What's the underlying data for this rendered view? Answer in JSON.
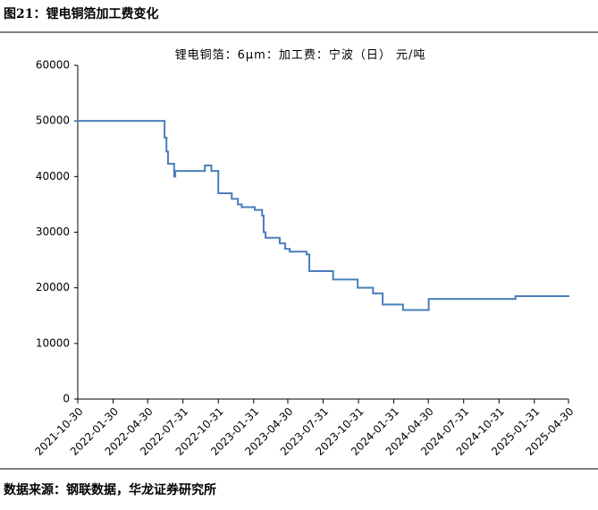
{
  "figure_title": "图21：锂电铜箔加工费变化",
  "source": "数据来源：钢联数据，华龙证券研究所",
  "chart_data": {
    "type": "line",
    "step": "post",
    "title": "锂电铜箔：6μm：加工费：宁波（日）  元/吨",
    "x": [
      "2021-10-30",
      "2022-06-13",
      "2022-06-18",
      "2022-06-22",
      "2022-07-08",
      "2022-07-11",
      "2022-09-26",
      "2022-10-13",
      "2022-10-31",
      "2022-12-05",
      "2022-12-21",
      "2022-12-31",
      "2023-02-03",
      "2023-02-22",
      "2023-02-26",
      "2023-03-03",
      "2023-04-09",
      "2023-04-23",
      "2023-05-05",
      "2023-06-18",
      "2023-06-25",
      "2023-08-26",
      "2023-10-29",
      "2023-12-08",
      "2024-01-02",
      "2024-02-24",
      "2024-05-01",
      "2024-12-13",
      "2025-04-30"
    ],
    "series": [
      {
        "name": "锂电铜箔：6μm：加工费：宁波（日）",
        "color": "#4a7ebb",
        "values": [
          50000,
          47000,
          44500,
          42300,
          40000,
          41000,
          42000,
          41000,
          37000,
          36000,
          35000,
          34500,
          34000,
          33000,
          30000,
          29000,
          28000,
          27000,
          26500,
          26000,
          23000,
          21500,
          20000,
          19000,
          17000,
          16000,
          18000,
          18500,
          18500
        ]
      }
    ],
    "xlim": [
      "2021-10-30",
      "2025-04-30"
    ],
    "xticks": [
      "2021-10-30",
      "2022-01-30",
      "2022-04-30",
      "2022-07-31",
      "2022-10-31",
      "2023-01-31",
      "2023-04-30",
      "2023-07-31",
      "2023-10-31",
      "2024-01-31",
      "2024-04-30",
      "2024-07-31",
      "2024-10-31",
      "2025-01-31",
      "2025-04-30"
    ],
    "ylim": [
      0,
      60000
    ],
    "yticks": [
      0,
      10000,
      20000,
      30000,
      40000,
      50000,
      60000
    ],
    "grid": false
  }
}
